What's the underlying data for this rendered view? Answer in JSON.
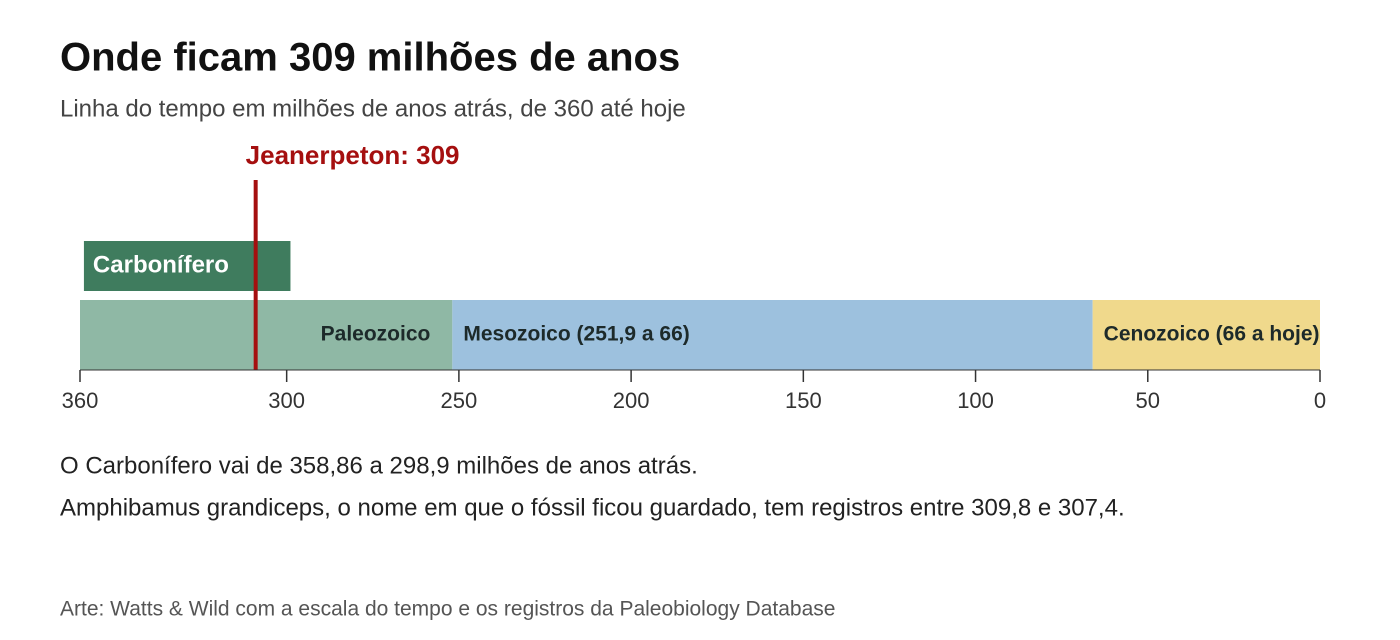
{
  "chart_data": {
    "type": "timeline",
    "title": "Onde ficam 309 milhões de anos",
    "subtitle": "Linha do tempo em milhões de anos atrás, de 360 até hoje",
    "xlim": [
      360,
      0
    ],
    "xticks": [
      360,
      300,
      250,
      200,
      150,
      100,
      50,
      0
    ],
    "eras": [
      {
        "name": "Paleozoico",
        "start": 360,
        "end": 251.9,
        "color": "#8fb8a5"
      },
      {
        "name": "Mesozoico (251,9 a 66)",
        "start": 251.9,
        "end": 66,
        "color": "#9dc1de"
      },
      {
        "name": "Cenozoico (66 a hoje)",
        "start": 66,
        "end": 0,
        "color": "#f0d98c"
      }
    ],
    "periods": [
      {
        "name": "Carbonífero",
        "start": 358.86,
        "end": 298.9,
        "color": "#3f7c5e"
      }
    ],
    "marker": {
      "label": "Jeanerpeton: 309",
      "value": 309,
      "color": "#a50f0f"
    },
    "notes": [
      "O Carbonífero vai de 358,86 a 298,9 milhões de anos atrás.",
      "Amphibamus grandiceps, o nome em que o fóssil ficou guardado, tem registros entre 309,8 e 307,4."
    ],
    "source": "Arte: Watts & Wild com a escala do tempo e os registros da Paleobiology Database"
  }
}
